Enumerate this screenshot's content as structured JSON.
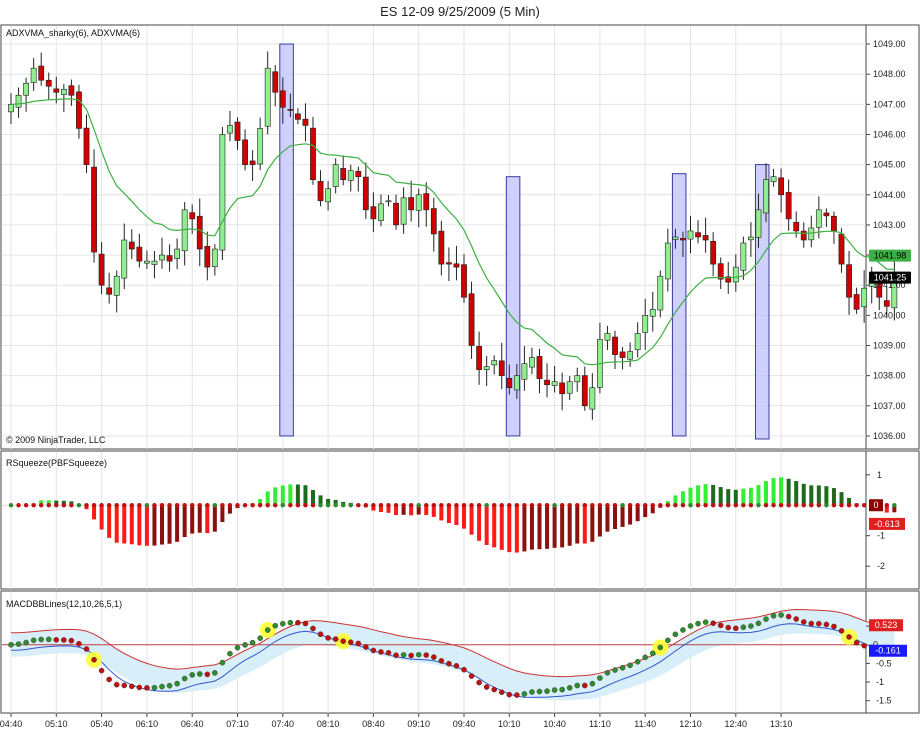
{
  "window": {
    "title": "ES 12-09  9/25/2009 (5 Min)"
  },
  "colors": {
    "up": "#90ee90",
    "down": "#d00000",
    "ma": "#3cb043",
    "box": "#c8c8ff",
    "box_border": "#3a3aa0",
    "sq_up_light": "#33ee33",
    "sq_up_dark": "#1e6b1e",
    "sq_dn_light": "#ff1a1a",
    "sq_dn_dark": "#8b1010",
    "macd_fast": "#cc3333",
    "macd_slow": "#3355cc",
    "fill": "#d8eef8",
    "dot_up": "#2e8b2e",
    "dot_dn": "#c01010",
    "cross": "#ffff33"
  },
  "chart_data": [
    {
      "name": "price",
      "type": "candlestick",
      "label": "ADXVMA_sharky(6), ADXVMA(6)",
      "copyright": "© 2009 NinjaTrader, LLC",
      "ylim": [
        1035.7,
        1049.3
      ],
      "yticks": [
        "1036.00",
        "1037.00",
        "1038.00",
        "1039.00",
        "1040.00",
        "1041.00",
        "1042.00",
        "1043.00",
        "1044.00",
        "1045.00",
        "1046.00",
        "1047.00",
        "1048.00",
        "1049.00"
      ],
      "x_time_labels": [
        "04:40",
        "05:10",
        "05:40",
        "06:10",
        "06:40",
        "07:10",
        "07:40",
        "08:10",
        "08:40",
        "09:10",
        "09:40",
        "10:10",
        "10:40",
        "11:10",
        "11:40",
        "12:10",
        "12:40",
        "13:10"
      ],
      "close": [
        1047.0,
        1047.3,
        1047.7,
        1048.2,
        1047.8,
        1047.6,
        1047.4,
        1047.5,
        1047.3,
        1046.2,
        1045.0,
        1042.1,
        1041.0,
        1040.7,
        1041.3,
        1042.5,
        1042.2,
        1041.8,
        1041.8,
        1041.8,
        1042.0,
        1041.8,
        1042.2,
        1043.5,
        1043.2,
        1042.2,
        1041.6,
        1042.2,
        1046.0,
        1046.3,
        1045.8,
        1045.0,
        1045.0,
        1046.2,
        1048.2,
        1047.4,
        1046.9,
        1046.8,
        1046.5,
        1046.3,
        1044.5,
        1043.8,
        1044.2,
        1045.0,
        1044.5,
        1044.8,
        1044.6,
        1043.5,
        1043.2,
        1043.7,
        1043.8,
        1043.0,
        1043.9,
        1043.5,
        1044.0,
        1043.5,
        1042.7,
        1041.7,
        1041.7,
        1041.6,
        1040.6,
        1039.0,
        1038.2,
        1038.3,
        1038.5,
        1038.0,
        1037.6,
        1038.0,
        1038.4,
        1038.6,
        1037.9,
        1037.7,
        1037.8,
        1037.4,
        1037.8,
        1038.0,
        1037.0,
        1037.6,
        1039.2,
        1039.4,
        1038.7,
        1038.6,
        1038.8,
        1039.4,
        1040.0,
        1040.2,
        1041.3,
        1042.4,
        1042.6,
        1042.5,
        1042.8,
        1042.6,
        1042.5,
        1041.7,
        1041.2,
        1041.1,
        1041.6,
        1042.4,
        1042.6,
        1043.5,
        1044.5,
        1044.6,
        1044.0,
        1043.2,
        1042.8,
        1042.5,
        1042.9,
        1043.5,
        1043.3,
        1042.8,
        1041.7,
        1040.6,
        1040.2,
        1040.9,
        1041.2,
        1040.6,
        1040.3,
        1041.3
      ]
    },
    {
      "name": "squeeze",
      "type": "bar",
      "label": "RSqueeze(PBFSqueeze)",
      "ylim": [
        -2.65,
        1.55
      ],
      "yticks": [
        "1",
        "-1",
        "-2"
      ],
      "badges": [
        {
          "text": "0"
        },
        {
          "text": "-0.613"
        }
      ]
    },
    {
      "name": "macd",
      "type": "line",
      "label": "MACDBBLines(12,10,26,5,1)",
      "ylim": [
        -1.75,
        1.2
      ],
      "yticks": [
        "0.5",
        "-0.5",
        "-1",
        "-1.5"
      ],
      "badges": [
        {
          "text": "0.523"
        },
        {
          "text": "0"
        },
        {
          "text": "-0.161"
        }
      ]
    }
  ],
  "price_badges": [
    {
      "text": "1041.98"
    },
    {
      "text": "1041.25"
    }
  ],
  "highlight_boxes": [
    {
      "start_index": 36,
      "end_index": 37,
      "top": 1049.0,
      "bottom": 1036.0
    },
    {
      "start_index": 66,
      "end_index": 67,
      "top": 1044.6,
      "bottom": 1036.0
    },
    {
      "start_index": 88,
      "end_index": 89,
      "top": 1044.7,
      "bottom": 1036.0
    },
    {
      "start_index": 99,
      "end_index": 100,
      "top": 1045.0,
      "bottom": 1035.9
    }
  ],
  "crossover_indices": [
    11,
    34,
    44,
    86,
    111
  ]
}
